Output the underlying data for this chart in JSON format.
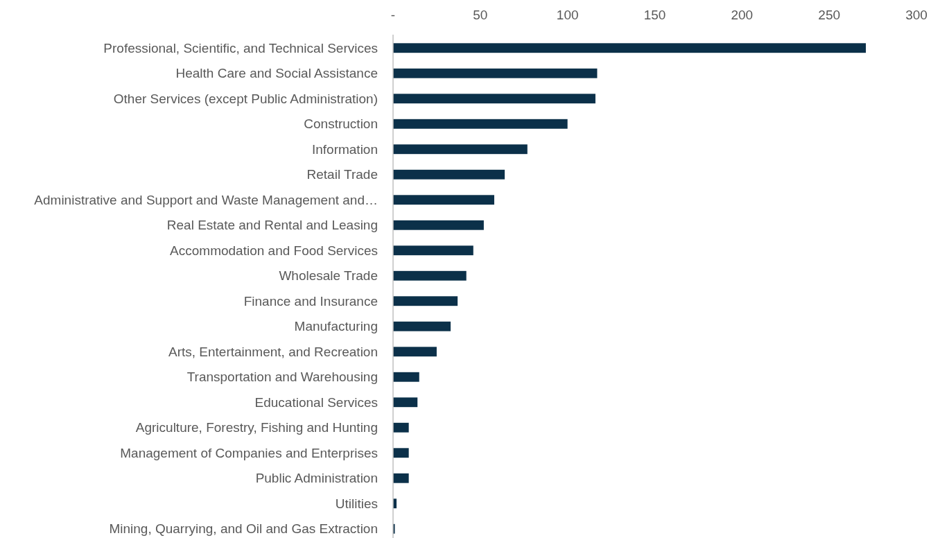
{
  "chart_data": {
    "type": "bar",
    "orientation": "horizontal",
    "categories": [
      "Professional, Scientific, and Technical Services",
      "Health Care and Social Assistance",
      "Other Services (except Public Administration)",
      "Construction",
      "Information",
      "Retail Trade",
      "Administrative and Support and Waste Management and…",
      "Real Estate and Rental and Leasing",
      "Accommodation and Food Services",
      "Wholesale Trade",
      "Finance and Insurance",
      "Manufacturing",
      "Arts, Entertainment, and Recreation",
      "Transportation and Warehousing",
      "Educational Services",
      "Agriculture, Forestry, Fishing and Hunting",
      "Management of Companies and Enterprises",
      "Public Administration",
      "Utilities",
      "Mining, Quarrying, and Oil and Gas Extraction"
    ],
    "values": [
      271,
      117,
      116,
      100,
      77,
      64,
      58,
      52,
      46,
      42,
      37,
      33,
      25,
      15,
      14,
      9,
      9,
      9,
      2,
      1
    ],
    "color": "#0b3049",
    "xlim": [
      0,
      300
    ],
    "xticks": [
      {
        "value": 0,
        "label": "-"
      },
      50,
      100,
      150,
      200,
      250,
      300
    ],
    "grid": false
  }
}
